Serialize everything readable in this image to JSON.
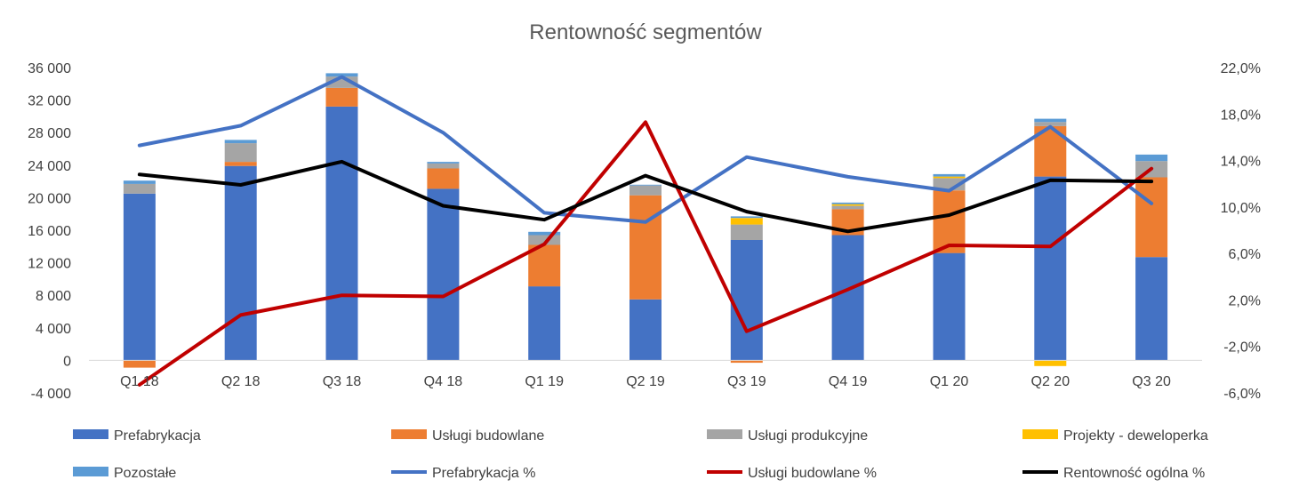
{
  "chart_data": {
    "type": "bar",
    "title": "Rentowność segmentów",
    "categories": [
      "Q1 18",
      "Q2 18",
      "Q3 18",
      "Q4 18",
      "Q1 19",
      "Q2 19",
      "Q3 19",
      "Q4 19",
      "Q1 20",
      "Q2 20",
      "Q3 20"
    ],
    "y_left": {
      "min": -4000,
      "max": 36000,
      "step": 4000,
      "tick_labels": [
        "-4 000",
        "0",
        "4 000",
        "8 000",
        "12 000",
        "16 000",
        "20 000",
        "24 000",
        "28 000",
        "32 000",
        "36 000"
      ]
    },
    "y_right": {
      "min": -6,
      "max": 22,
      "step": 4,
      "tick_labels": [
        "-6,0%",
        "-2,0%",
        "2,0%",
        "6,0%",
        "10,0%",
        "14,0%",
        "18,0%",
        "22,0%"
      ]
    },
    "stacked_series": [
      {
        "name": "Prefabrykacja",
        "color": "#4472C4",
        "values": [
          20500,
          23900,
          31200,
          21100,
          9100,
          7500,
          14800,
          15400,
          13200,
          22600,
          12700
        ]
      },
      {
        "name": "Usługi budowlane",
        "color": "#ED7D31",
        "values": [
          -900,
          500,
          2300,
          2500,
          5100,
          12800,
          -300,
          3200,
          7700,
          6200,
          9800
        ]
      },
      {
        "name": "Usługi produkcyjne",
        "color": "#A5A5A5",
        "values": [
          1200,
          2300,
          1400,
          600,
          1200,
          1200,
          1900,
          400,
          1500,
          500,
          2000
        ]
      },
      {
        "name": "Projekty - deweloperka",
        "color": "#FFC000",
        "values": [
          0,
          0,
          0,
          0,
          0,
          0,
          800,
          200,
          200,
          -700,
          0
        ]
      },
      {
        "name": "Pozostałe",
        "color": "#5B9BD5",
        "values": [
          400,
          400,
          400,
          200,
          400,
          100,
          200,
          200,
          300,
          400,
          800
        ]
      }
    ],
    "line_series": [
      {
        "name": "Prefabrykacja %",
        "color": "#4472C4",
        "values": [
          15.3,
          17.0,
          21.2,
          16.4,
          9.5,
          8.7,
          14.3,
          12.6,
          11.4,
          16.9,
          10.3
        ]
      },
      {
        "name": "Usługi budowlane %",
        "color": "#C00000",
        "values": [
          -5.3,
          0.7,
          2.4,
          2.3,
          6.8,
          17.3,
          -0.7,
          2.9,
          6.7,
          6.6,
          13.3
        ]
      },
      {
        "name": "Rentowność ogólna %",
        "color": "#000000",
        "values": [
          12.8,
          11.9,
          13.9,
          10.1,
          8.9,
          12.7,
          9.6,
          7.9,
          9.3,
          12.3,
          12.2
        ]
      }
    ],
    "legend_position": "bottom",
    "grid": false
  }
}
